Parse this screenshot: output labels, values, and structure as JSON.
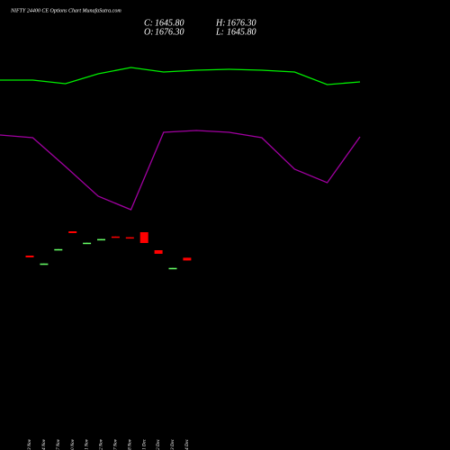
{
  "chart_data": {
    "type": "candlestick",
    "title": "NIFTY 24400  CE Options  Chart MunafaSutra.com",
    "ohlc": {
      "labels": [
        "C:",
        "H:",
        "O:",
        "L:"
      ],
      "values": [
        1645.8,
        1676.3,
        1676.3,
        1645.8
      ],
      "value_labels": [
        "1645.80",
        "1676.30",
        "1676.30",
        "1645.80"
      ]
    },
    "categories": [
      "13 Nov",
      "14 Nov",
      "17 Nov",
      "20 Nov",
      "21 Nov",
      "22 Nov",
      "27 Nov",
      "28 Nov",
      "01 Dec",
      "02 Dec",
      "03 Dec",
      "04 Dec"
    ],
    "open": [
      1700,
      1607,
      1765,
      1970,
      1838,
      1878,
      1912,
      1904,
      1960,
      1760,
      1557,
      1676.3
    ],
    "high": [
      1700,
      1612,
      1772,
      1970,
      1843,
      1884,
      1912,
      1904,
      1960,
      1760,
      1563,
      1676.3
    ],
    "low": [
      1680,
      1607,
      1765,
      1950,
      1838,
      1878,
      1905,
      1896,
      1840,
      1720,
      1557,
      1645.8
    ],
    "close": [
      1680,
      1612,
      1772,
      1950,
      1843,
      1884,
      1905,
      1896,
      1840,
      1720,
      1563,
      1645.8
    ],
    "up_color": "#66ff66",
    "down_color": "#ff0000",
    "ylim": [
      1440,
      2140
    ],
    "series": [
      {
        "color": "#00ee00",
        "values": [
          411,
          411,
          407,
          418,
          425,
          420,
          422,
          423,
          422,
          420,
          406,
          409
        ]
      },
      {
        "color": "#a000a0",
        "values": [
          350,
          347,
          315,
          282,
          267,
          353,
          355,
          353,
          347,
          312,
          297,
          348
        ]
      }
    ],
    "y2lim": [
      0,
      500
    ]
  }
}
